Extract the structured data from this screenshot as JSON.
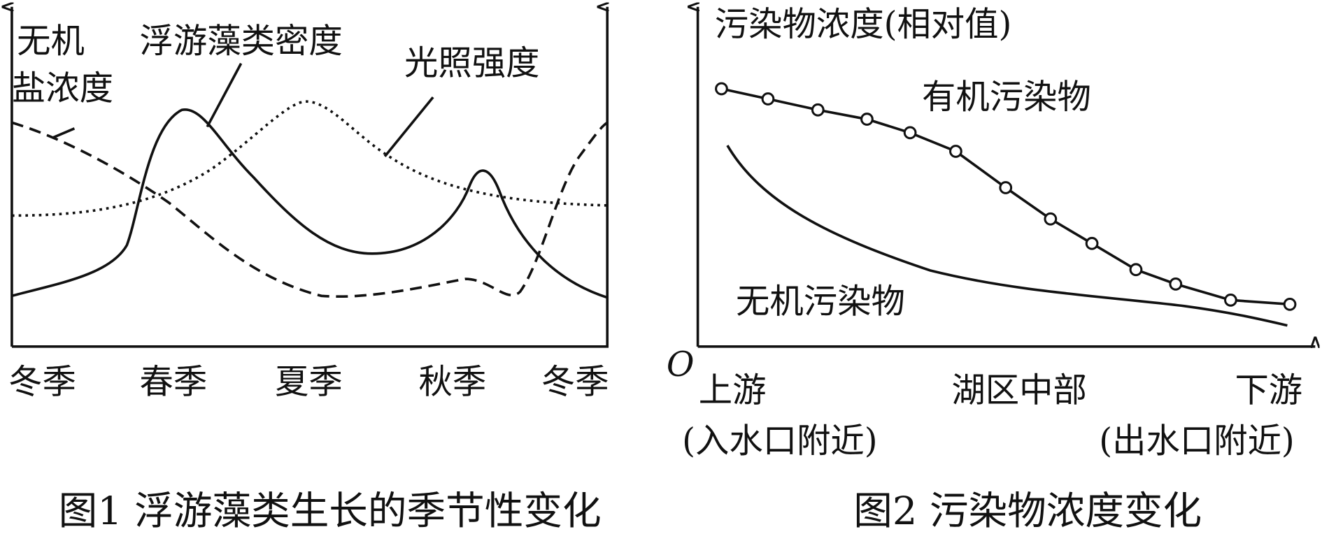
{
  "figure1": {
    "labels": {
      "inorganic_salt_1": "无机",
      "inorganic_salt_2": "盐浓度",
      "algae_density": "浮游藻类密度",
      "light_intensity": "光照强度"
    },
    "x_labels": [
      "冬季",
      "春季",
      "夏季",
      "秋季",
      "冬季"
    ],
    "caption": "图1 浮游藻类生长的季节性变化"
  },
  "figure2": {
    "y_label": "污染物浓度(相对值)",
    "organic": "有机污染物",
    "inorganic": "无机污染物",
    "origin": "O",
    "x_labels": [
      {
        "name": "上游",
        "note": "(入水口附近)"
      },
      {
        "name": "湖区中部"
      },
      {
        "name": "下游",
        "note": "(出水口附近)"
      }
    ],
    "caption": "图2  污染物浓度变化"
  }
}
